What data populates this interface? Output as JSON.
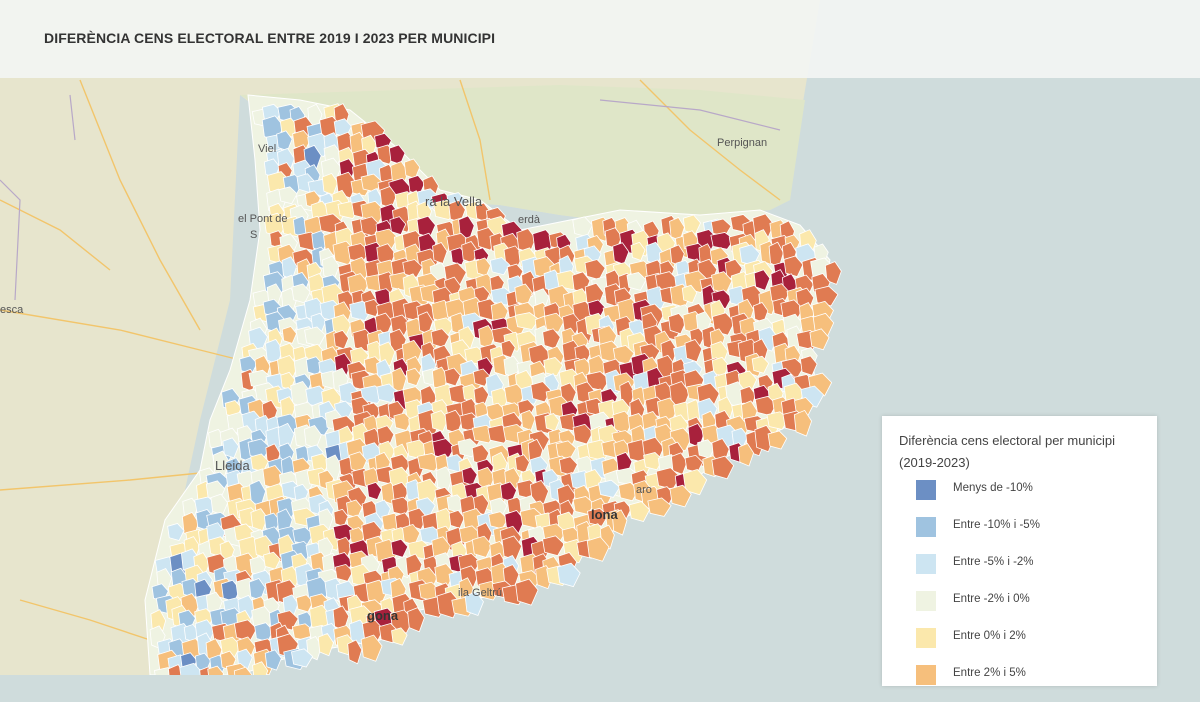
{
  "title": "DIFERÈNCIA CENS ELECTORAL ENTRE 2019 I 2023 PER MUNICIPI",
  "legend": {
    "title": "Diferència cens electoral per municipi (2019-2023)",
    "items": [
      {
        "label": "Menys de -10%",
        "color": "#6c8fc4"
      },
      {
        "label": "Entre -10% i -5%",
        "color": "#9fc3e0"
      },
      {
        "label": "Entre -5% i -2%",
        "color": "#cde5f2"
      },
      {
        "label": "Entre -2% i 0%",
        "color": "#eff3e2"
      },
      {
        "label": "Entre 0% i 2%",
        "color": "#fbe8ac"
      },
      {
        "label": "Entre 2% i 5%",
        "color": "#f6bf7c"
      }
    ]
  },
  "basemap_labels": {
    "perpignan": "Perpignan",
    "andorra": "ra la Vella",
    "puigcerda": "erdà",
    "pont": "el Pont de",
    "suert": "S",
    "huesca": "esca",
    "lleida": "Lleida",
    "barcelona": "lona",
    "tarragona": "gona",
    "geltru": "ila Geltrú",
    "sabadell": "aro",
    "viella": "Viel"
  },
  "colors": {
    "sea": "#cfdcdc",
    "land": "#e6e4cc",
    "roads": "#f2c56b",
    "borders": "#b8a8c8",
    "very_high": "#a8213c",
    "high": "#e07b52"
  }
}
